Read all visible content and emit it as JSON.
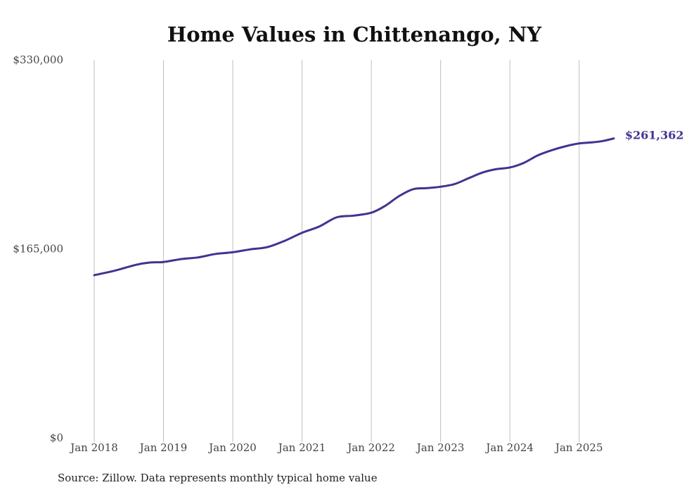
{
  "chart_data": {
    "type": "line",
    "title": "Home Values in Chittenango, NY",
    "source": "Source: Zillow. Data represents monthly typical home value",
    "y_ticks": [
      {
        "value": 330000,
        "label": "$330,000"
      },
      {
        "value": 165000,
        "label": "$165,000"
      },
      {
        "value": 0,
        "label": "$0"
      }
    ],
    "x_ticks": [
      {
        "value": 2018,
        "label": "Jan 2018"
      },
      {
        "value": 2019,
        "label": "Jan 2019"
      },
      {
        "value": 2020,
        "label": "Jan 2020"
      },
      {
        "value": 2021,
        "label": "Jan 2021"
      },
      {
        "value": 2022,
        "label": "Jan 2022"
      },
      {
        "value": 2023,
        "label": "Jan 2023"
      },
      {
        "value": 2024,
        "label": "Jan 2024"
      },
      {
        "value": 2025,
        "label": "Jan 2025"
      }
    ],
    "xlim": [
      2018,
      2025.5
    ],
    "ylim": [
      0,
      330000
    ],
    "grid": "vertical",
    "line_color": "#3f3491",
    "series": [
      {
        "end_label": "$261,362",
        "x": [
          2018.0,
          2018.3,
          2018.6,
          2018.8,
          2019.0,
          2019.25,
          2019.5,
          2019.75,
          2020.0,
          2020.25,
          2020.5,
          2020.75,
          2021.0,
          2021.25,
          2021.5,
          2021.75,
          2022.0,
          2022.2,
          2022.4,
          2022.6,
          2022.8,
          2023.0,
          2023.2,
          2023.4,
          2023.6,
          2023.8,
          2024.0,
          2024.2,
          2024.4,
          2024.6,
          2024.8,
          2025.0,
          2025.2,
          2025.35,
          2025.5
        ],
        "y": [
          142000,
          146000,
          151000,
          153000,
          153500,
          156000,
          157500,
          160500,
          162000,
          164500,
          166500,
          172000,
          179000,
          184500,
          192500,
          194000,
          196500,
          202500,
          211000,
          217000,
          218000,
          219200,
          221500,
          226500,
          231500,
          234500,
          236000,
          240000,
          246500,
          251000,
          254500,
          257000,
          258000,
          259200,
          261362
        ]
      }
    ]
  }
}
